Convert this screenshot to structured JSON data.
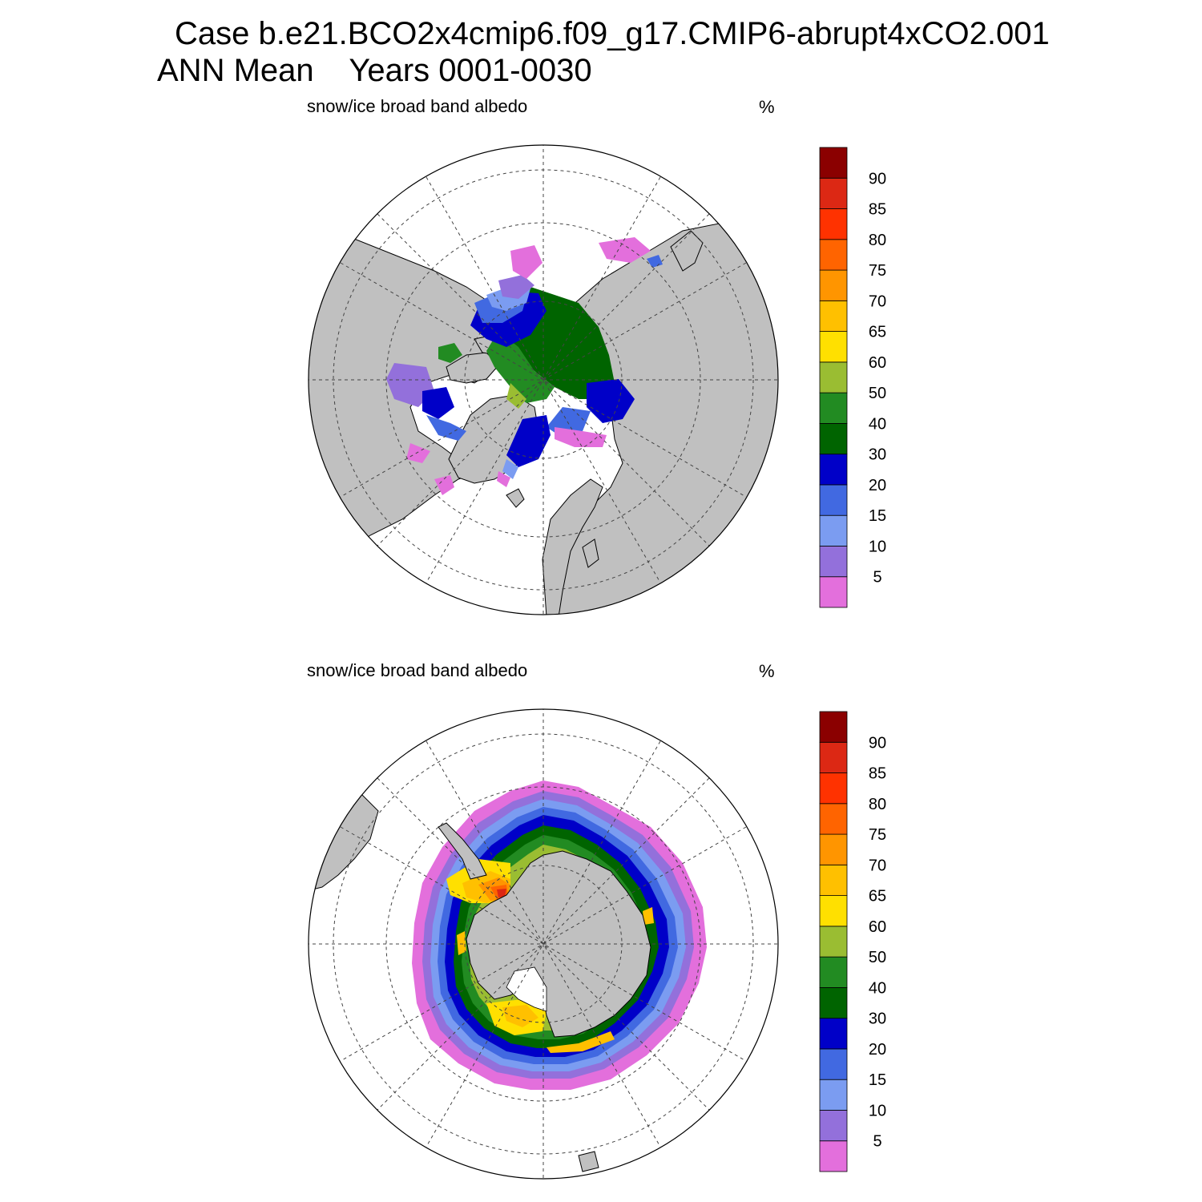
{
  "figure": {
    "title_line1": "Case b.e21.BCO2x4cmip6.f09_g17.CMIP6-abrupt4xCO2.001",
    "title_line2": "ANN Mean    Years 0001-0030"
  },
  "chart_data": [
    {
      "type": "heatmap",
      "projection": "polar-stereographic",
      "hemisphere": "north",
      "title": "snow/ice broad band albedo",
      "units": "%",
      "colorbar": {
        "levels": [
          5,
          10,
          15,
          20,
          30,
          40,
          50,
          60,
          65,
          70,
          75,
          80,
          85,
          90
        ],
        "colors": [
          "#e36fdc",
          "#9370db",
          "#7b9cf1",
          "#4169e1",
          "#0000c8",
          "#006400",
          "#228b22",
          "#9abd32",
          "#ffe000",
          "#ffc000",
          "#ff9500",
          "#ff6400",
          "#ff3200",
          "#dc2814",
          "#8b0000"
        ]
      },
      "land_color": "#c0c0c0",
      "ocean_color": "#ffffff"
    },
    {
      "type": "heatmap",
      "projection": "polar-stereographic",
      "hemisphere": "south",
      "title": "snow/ice broad band albedo",
      "units": "%",
      "colorbar": {
        "levels": [
          5,
          10,
          15,
          20,
          30,
          40,
          50,
          60,
          65,
          70,
          75,
          80,
          85,
          90
        ],
        "colors": [
          "#e36fdc",
          "#9370db",
          "#7b9cf1",
          "#4169e1",
          "#0000c8",
          "#006400",
          "#228b22",
          "#9abd32",
          "#ffe000",
          "#ffc000",
          "#ff9500",
          "#ff6400",
          "#ff3200",
          "#dc2814",
          "#8b0000"
        ]
      },
      "land_color": "#c0c0c0",
      "ocean_color": "#ffffff"
    }
  ]
}
